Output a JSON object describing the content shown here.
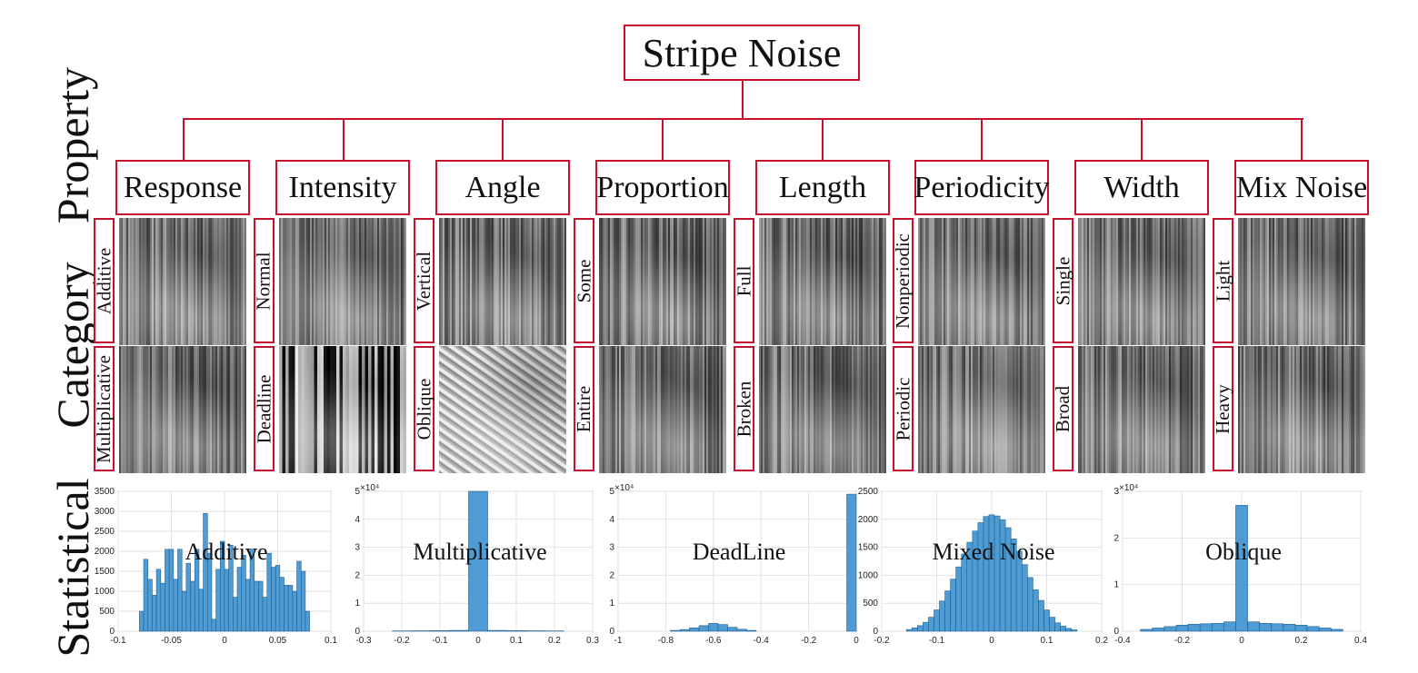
{
  "title": "Stripe Noise",
  "side_labels": {
    "property": "Property",
    "category": "Category",
    "statistical": "Statistical"
  },
  "properties": [
    {
      "label": "Response",
      "categories": [
        "Additive",
        "Multiplicative"
      ]
    },
    {
      "label": "Intensity",
      "categories": [
        "Normal",
        "Deadline"
      ]
    },
    {
      "label": "Angle",
      "categories": [
        "Vertical",
        "Oblique"
      ]
    },
    {
      "label": "Proportion",
      "categories": [
        "Some",
        "Entire"
      ]
    },
    {
      "label": "Length",
      "categories": [
        "Full",
        "Broken"
      ]
    },
    {
      "label": "Periodicity",
      "categories": [
        "Nonperiodic",
        "Periodic"
      ]
    },
    {
      "label": "Width",
      "categories": [
        "Single",
        "Broad"
      ]
    },
    {
      "label": "Mix Noise",
      "categories": [
        "Light",
        "Heavy"
      ]
    }
  ],
  "colors": {
    "box_border": "#c8102e",
    "bar_fill": "#4f9cd4",
    "bar_edge": "#1f5f8f"
  },
  "chart_data": [
    {
      "type": "bar",
      "title": "Additive",
      "multiplier": "",
      "xlim": [
        -0.1,
        0.1
      ],
      "ylim": [
        0,
        3500
      ],
      "xticks": [
        "-0.1",
        "-0.05",
        "0",
        "0.05",
        "0.1"
      ],
      "yticks": [
        "0",
        "500",
        "1000",
        "1500",
        "2000",
        "2500",
        "3000",
        "3500"
      ],
      "x": [
        -0.078,
        -0.074,
        -0.07,
        -0.066,
        -0.062,
        -0.058,
        -0.054,
        -0.05,
        -0.046,
        -0.042,
        -0.038,
        -0.034,
        -0.03,
        -0.026,
        -0.022,
        -0.018,
        -0.014,
        -0.01,
        -0.006,
        -0.002,
        0.002,
        0.006,
        0.01,
        0.014,
        0.018,
        0.022,
        0.026,
        0.03,
        0.034,
        0.038,
        0.042,
        0.046,
        0.05,
        0.054,
        0.058,
        0.062,
        0.066,
        0.07,
        0.074,
        0.078
      ],
      "values": [
        500,
        1800,
        1300,
        900,
        1550,
        1200,
        2050,
        2050,
        1300,
        2050,
        1000,
        1700,
        1250,
        2050,
        1050,
        2950,
        1950,
        300,
        1550,
        2250,
        1550,
        2150,
        850,
        1600,
        1900,
        1300,
        2050,
        1250,
        1250,
        850,
        1950,
        1600,
        1650,
        1350,
        1150,
        1150,
        1000,
        1750,
        1500,
        500
      ]
    },
    {
      "type": "bar",
      "title": "Multiplicative",
      "multiplier": "×10⁴",
      "xlim": [
        -0.3,
        0.3
      ],
      "ylim": [
        0,
        5
      ],
      "xticks": [
        "-0.3",
        "-0.2",
        "-0.1",
        "0",
        "0.1",
        "0.2",
        "0.3"
      ],
      "yticks": [
        "0",
        "1",
        "2",
        "3",
        "4",
        "5"
      ],
      "x": [
        -0.2,
        -0.15,
        -0.1,
        -0.05,
        0,
        0.05,
        0.1,
        0.15,
        0.2
      ],
      "values": [
        0.01,
        0.015,
        0.02,
        0.03,
        5.0,
        0.03,
        0.02,
        0.015,
        0.01
      ]
    },
    {
      "type": "bar",
      "title": "DeadLine",
      "multiplier": "×10⁴",
      "xlim": [
        -1,
        0
      ],
      "ylim": [
        0,
        5
      ],
      "xticks": [
        "-1",
        "-0.8",
        "-0.6",
        "-0.4",
        "-0.2",
        "0"
      ],
      "yticks": [
        "0",
        "1",
        "2",
        "3",
        "4",
        "5"
      ],
      "x": [
        -0.76,
        -0.72,
        -0.68,
        -0.64,
        -0.6,
        -0.56,
        -0.52,
        -0.48,
        -0.44,
        0
      ],
      "values": [
        0.03,
        0.06,
        0.12,
        0.2,
        0.28,
        0.24,
        0.14,
        0.07,
        0.03,
        4.9
      ]
    },
    {
      "type": "bar",
      "title": "Mixed Noise",
      "multiplier": "",
      "xlim": [
        -0.2,
        0.2
      ],
      "ylim": [
        0,
        2500
      ],
      "xticks": [
        "-0.2",
        "-0.1",
        "0",
        "0.1",
        "0.2"
      ],
      "yticks": [
        "0",
        "500",
        "1000",
        "1500",
        "2000",
        "2500"
      ],
      "x": [
        -0.15,
        -0.14,
        -0.13,
        -0.12,
        -0.11,
        -0.1,
        -0.09,
        -0.08,
        -0.07,
        -0.06,
        -0.05,
        -0.04,
        -0.03,
        -0.02,
        -0.01,
        0,
        0.01,
        0.02,
        0.03,
        0.04,
        0.05,
        0.06,
        0.07,
        0.08,
        0.09,
        0.1,
        0.11,
        0.12,
        0.13,
        0.14,
        0.15
      ],
      "values": [
        30,
        60,
        100,
        160,
        250,
        380,
        540,
        720,
        930,
        1150,
        1380,
        1590,
        1790,
        1940,
        2050,
        2080,
        2060,
        1990,
        1850,
        1650,
        1430,
        1190,
        960,
        740,
        550,
        380,
        250,
        150,
        90,
        50,
        25
      ]
    },
    {
      "type": "bar",
      "title": "Oblique",
      "multiplier": "×10⁴",
      "xlim": [
        -0.4,
        0.4
      ],
      "ylim": [
        0,
        3
      ],
      "xticks": [
        "-0.4",
        "-0.2",
        "0",
        "0.2",
        "0.4"
      ],
      "yticks": [
        "0",
        "1",
        "2",
        "3"
      ],
      "x": [
        -0.32,
        -0.28,
        -0.24,
        -0.2,
        -0.16,
        -0.12,
        -0.08,
        -0.04,
        0,
        0.04,
        0.08,
        0.12,
        0.16,
        0.2,
        0.24,
        0.28,
        0.32
      ],
      "values": [
        0.04,
        0.07,
        0.1,
        0.13,
        0.15,
        0.16,
        0.17,
        0.2,
        2.7,
        0.2,
        0.17,
        0.16,
        0.15,
        0.13,
        0.1,
        0.07,
        0.04
      ]
    }
  ]
}
